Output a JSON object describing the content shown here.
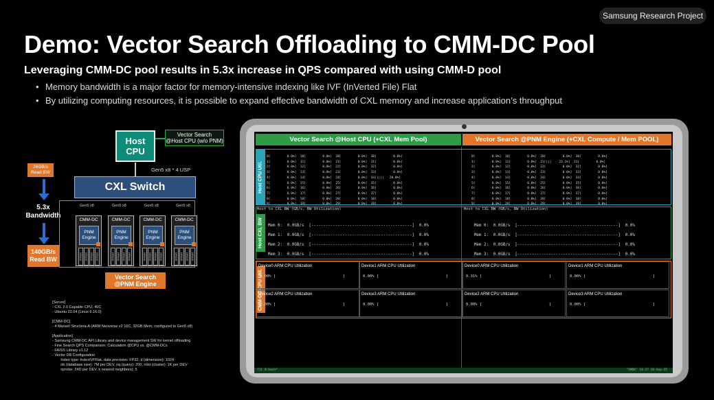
{
  "badge": "Samsung Research Project",
  "title": "Demo: Vector Search Offloading to CMM-DC Pool",
  "subtitle": "Leveraging CMM-DC pool results in 5.3x increase in QPS compared with using CMM-D pool",
  "bullets": [
    "Memory bandwidth is a major factor for memory-intensive indexing like IVF (InVerted File) Flat",
    "By utilizing computing resources, it is possible to expand effective bandwidth of CXL memory and increase application’s throughput"
  ],
  "diagram": {
    "host_cpu": "Host\nCPU",
    "vs_host": "Vector Search\n@Host CPU (w/o PNM)",
    "gen5_link": "Gen5 x8 * 4 USP",
    "cxl_switch": "CXL Switch",
    "bw_small": "26GB/s\nRead BW",
    "bw_ratio": "5.3x\nBandwidth",
    "bw_big": "140GB/s\nRead BW",
    "gen_labels": [
      "Gen5 x8",
      "Gen5 x8",
      "Gen5 x8",
      "Gen5 x8"
    ],
    "cmm_title": "CMM-DC",
    "pnm_label": "PNM\nEngine",
    "dram": "DRAM",
    "vs_pnm": "Vector Search\n@PNM Engine",
    "specs": "[Server]\n- CXL 2.0 Capable CPU, 40C\n- Ubuntu 22.04 (Linux 6.16.0)\n\n[CMM-DC]\n- 4 Marvell Structera-A (ARM Neoverse v2 16C, 32GB Mem, configured to Gen5 x8)\n\n[Application]\n- Samsung CMM-DC API Library and device management SW for kernel offloading\n- Fine Search QPS Comparison: Calculation @CPU vs. @CMM-DCs\n- FAISS Library v1.12\n- Vector DB Configuration\n        Index type: IndexIVFFlat, data precision: FP32, d (dimension): 1024\n        nb (database size): 7M per DEV, nq (query): 200, nlist (cluster): 1K per DEV\n        nprobe: 24D per DEV, k nearest neighbors): 5"
  },
  "screen": {
    "header_left": "Vector Search @Host CPU (+CXL Mem Pool)",
    "header_right": "Vector Search @PNM Engine (+CXL Compute / Mem POOL)",
    "tag_cpu": "Host CPU Util.",
    "tag_cxl": "Host CXL BW",
    "tag_arm": "CMM-DC CPU Util.",
    "cpu_left": "0[         0.0%]  10[         0.0%]  20[         0.0%]  30[         0.0%]\n1[         0.0%]  11[         0.0%]  21[         0.0%]  31[         0.0%]\n2[         0.0%]  12[         0.0%]  22[         0.0%]  32[         0.0%]\n3[         0.0%]  13[         0.0%]  23[         0.0%]  33[         0.0%]\n4[         0.0%]  14[         0.0%]  24[         0.0%]  34[||||   20.0%]\n5[         0.0%]  15[         0.0%]  25[         0.0%]  35[         0.0%]\n6[         0.0%]  16[         0.0%]  26[         0.0%]  36[         0.0%]\n7[         0.0%]  17[         0.0%]  27[         0.0%]  37[         0.0%]\n8[         0.0%]  18[         0.0%]  28[         0.0%]  38[         0.0%]\n9[         0.0%]  19[         0.0%]  29[         0.0%]  39[         0.0%]",
    "cpu_right": "0[         0.0%]  10[         0.0%]  20[         0.0%]  30[         0.0%]\n1[         0.0%]  11[         0.0%]  21[|||    23.1%]  31[         0.0%]\n2[         0.0%]  12[         0.0%]  22[         0.0%]  32[         0.0%]\n3[         0.0%]  13[         0.0%]  23[         0.0%]  33[         0.0%]\n4[         0.0%]  14[         0.0%]  24[         0.0%]  34[         0.0%]\n5[         0.0%]  15[         0.0%]  25[         0.0%]  35[         0.0%]\n6[         0.0%]  16[         0.0%]  26[         0.0%]  36[         0.0%]\n7[         0.0%]  17[         0.0%]  27[         0.0%]  37[         0.0%]\n8[         0.0%]  18[         0.0%]  28[         0.0%]  38[         0.0%]\n9[         0.0%]  19[         0.0%]  29[         0.0%]  39[         0.0%]",
    "bw_title": "Host to CXL BW (GB/s, BW Utilization)",
    "bw_rows": "Mem 0:  0.0GB/s  [------------------------------------------]  0.0%\nMem 1:  0.0GB/s  [------------------------------------------]  0.0%\nMem 2:  0.0GB/s  [------------------------------------------]  0.0%\nMem 3:  0.0GB/s  [------------------------------------------]  0.0%",
    "arm_left": [
      {
        "title": "Device0 ARM CPU Utilization",
        "value": "0.00% ["
      },
      {
        "title": "Device1 ARM CPU Utilization",
        "value": "0.00% ["
      },
      {
        "title": "Device2 ARM CPU Utilization",
        "value": "0.00% ["
      },
      {
        "title": "Device3 ARM CPU Utilization",
        "value": "0.00% ["
      }
    ],
    "arm_right": [
      {
        "title": "Device0 ARM CPU Utilization",
        "value": "0.31% ["
      },
      {
        "title": "Device1 ARM CPU Utilization",
        "value": "0.00% ["
      },
      {
        "title": "Device2 ARM CPU Utilization",
        "value": "0.00% ["
      },
      {
        "title": "Device3 ARM CPU Utilization",
        "value": "0.00% ["
      }
    ],
    "bracket": "]",
    "status_left": "[1] 0:bash*",
    "status_right": "\"SMDK\" 14:27 16-Sep-25"
  },
  "colors": {
    "green": "#2e9c47",
    "orange": "#e0772a",
    "teal": "#2aa4b5",
    "blue": "#2c4f7c"
  }
}
